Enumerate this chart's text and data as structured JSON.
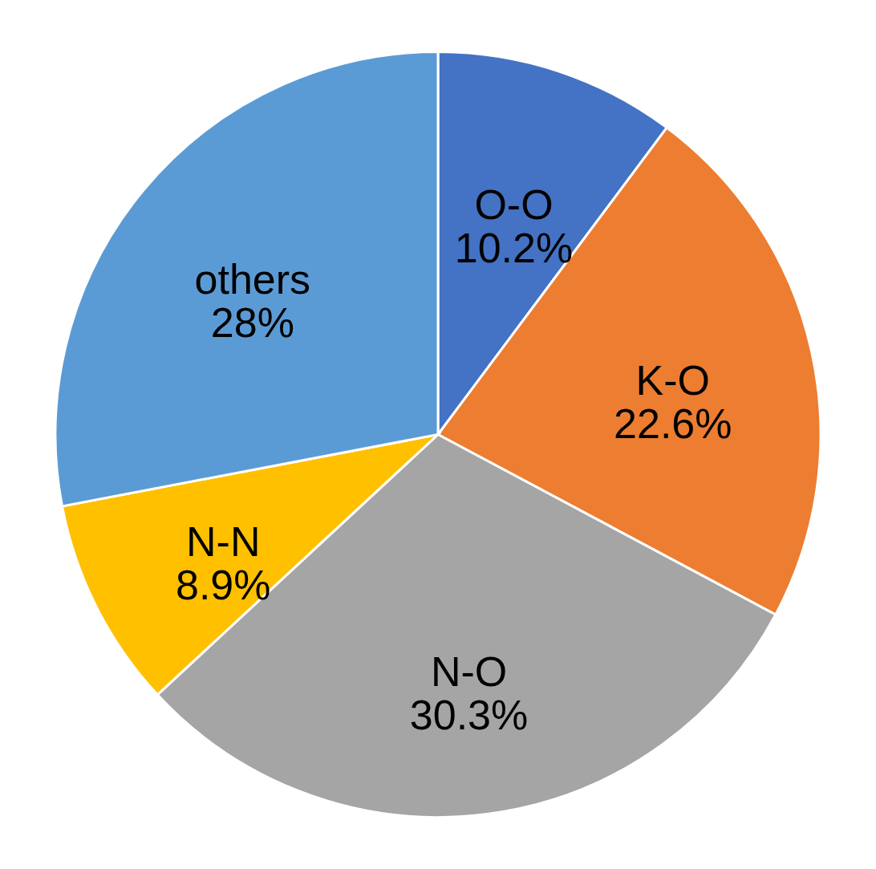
{
  "chart_data": {
    "type": "pie",
    "categories": [
      "O-O",
      "K-O",
      "N-O",
      "N-N",
      "others"
    ],
    "values": [
      10.2,
      22.6,
      30.3,
      8.9,
      28
    ],
    "colors": [
      "#4472c4",
      "#ed7d31",
      "#a5a5a5",
      "#ffc000",
      "#5b9bd5"
    ],
    "value_labels": [
      "10.2%",
      "22.6%",
      "30.3%",
      "8.9%",
      "28%"
    ],
    "legend": false
  }
}
